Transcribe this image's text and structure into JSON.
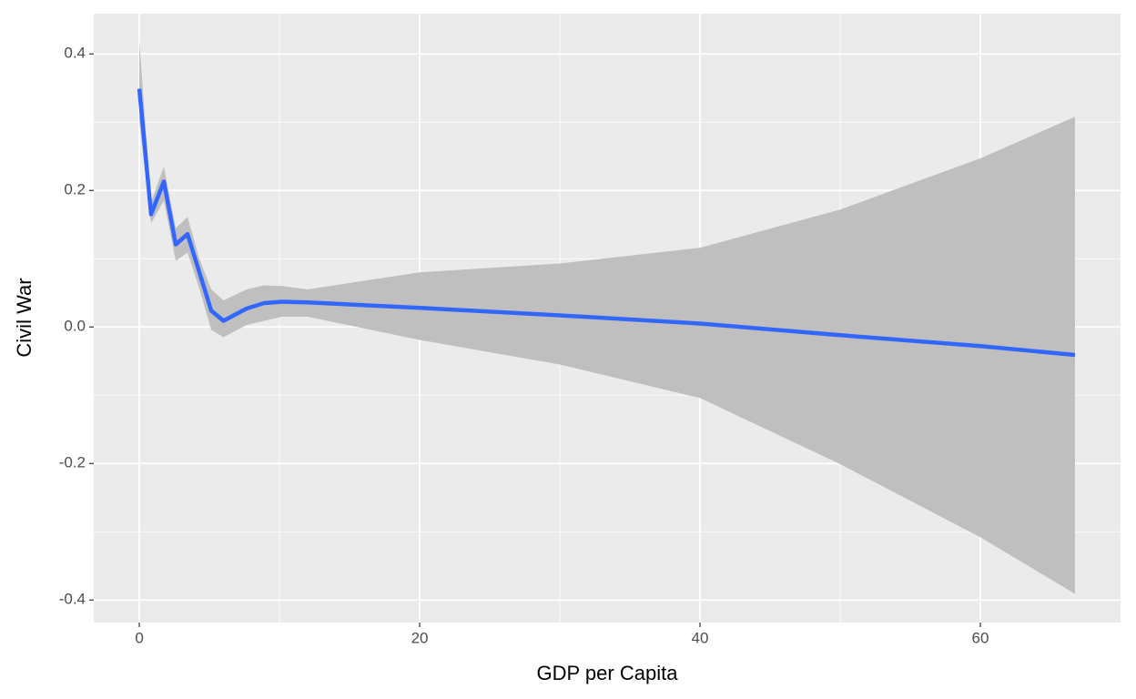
{
  "chart_data": {
    "type": "line",
    "x_label": "GDP per Capita",
    "y_label": "Civil War",
    "x": [
      0,
      0.84,
      1.75,
      2.6,
      3.44,
      4.3,
      5.13,
      6,
      7.66,
      8.9,
      10.2,
      12,
      20,
      30,
      40,
      50,
      60,
      66.75
    ],
    "series": [
      {
        "color": "#3366ff",
        "values": [
          0.349,
          0.165,
          0.213,
          0.121,
          0.136,
          0.079,
          0.024,
          0.009,
          0.027,
          0.035,
          0.037,
          0.036,
          0.028,
          0.017,
          0.005,
          -0.012,
          -0.028,
          -0.041
        ]
      }
    ],
    "band": {
      "color": "#bfbfbf",
      "upper": [
        0.419,
        0.183,
        0.235,
        0.145,
        0.161,
        0.099,
        0.055,
        0.039,
        0.055,
        0.061,
        0.06,
        0.055,
        0.08,
        0.093,
        0.116,
        0.172,
        0.247,
        0.308
      ],
      "lower": [
        0.3,
        0.152,
        0.185,
        0.097,
        0.109,
        0.055,
        -0.004,
        -0.015,
        0.003,
        0.009,
        0.015,
        0.015,
        -0.019,
        -0.055,
        -0.104,
        -0.201,
        -0.308,
        -0.391
      ]
    },
    "xlim": [
      -3.25,
      70
    ],
    "ylim": [
      -0.433,
      0.459
    ],
    "xticks": [
      0,
      20,
      40,
      60
    ],
    "yticks": [
      -0.4,
      -0.2,
      {
        "value": 0,
        "label": "0.0"
      },
      0.2,
      0.4
    ],
    "grid": true
  }
}
